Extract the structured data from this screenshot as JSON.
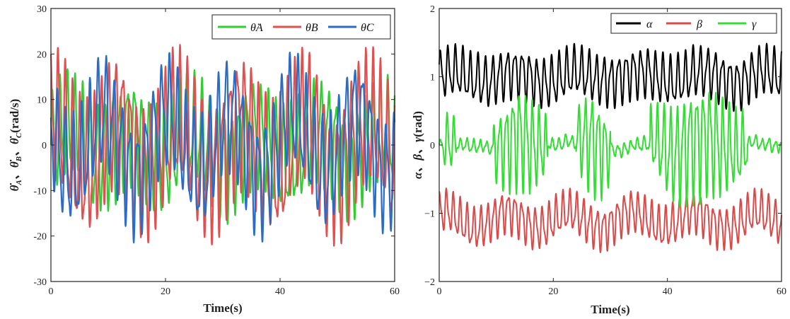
{
  "chart_data": [
    {
      "type": "line",
      "xlabel": "Time(s)",
      "ylabel_parts": [
        "θ̇",
        "A",
        "、",
        "θ̇",
        "B",
        "、",
        "θ̇",
        "C",
        "(rad/s)"
      ],
      "xlim": [
        0,
        60
      ],
      "ylim": [
        -30,
        30
      ],
      "x_ticks": [
        0,
        20,
        40,
        60
      ],
      "y_ticks": [
        -30,
        -20,
        -10,
        0,
        10,
        20,
        30
      ],
      "x_tick_labels": [
        "0",
        "20",
        "40",
        "60"
      ],
      "y_tick_labels": [
        "-30",
        "-20",
        "-10",
        "0",
        "10",
        "20",
        "30"
      ],
      "legend_position": "top-right",
      "series": [
        {
          "name": "θ̇A",
          "sub": "A",
          "color": "#33cc33",
          "base": 0,
          "amp": 13.5,
          "period": 1.3,
          "mod": 3.5,
          "phase": 0.0
        },
        {
          "name": "θ̇B",
          "sub": "B",
          "color": "#e05050",
          "base": 0,
          "amp": 17,
          "period": 1.25,
          "mod": 6.0,
          "phase": 1.4
        },
        {
          "name": "θ̇C",
          "sub": "C",
          "color": "#2b6cc4",
          "base": 0,
          "amp": 14,
          "period": 1.4,
          "mod": 7.0,
          "phase": 2.6
        }
      ]
    },
    {
      "type": "line",
      "xlabel": "Time(s)",
      "ylabel_parts": [
        "α",
        "、",
        "β",
        "、",
        "γ",
        "(rad)"
      ],
      "xlim": [
        0,
        60
      ],
      "ylim": [
        -2,
        2
      ],
      "x_ticks": [
        0,
        20,
        40,
        60
      ],
      "y_ticks": [
        -2,
        -1,
        0,
        1,
        2
      ],
      "x_tick_labels": [
        "0",
        "20",
        "40",
        "60"
      ],
      "y_tick_labels": [
        "−2",
        "−1",
        "0",
        "1",
        "2"
      ],
      "legend_position": "top-right",
      "series": [
        {
          "name": "α",
          "color": "#000000",
          "base": 1.0,
          "amp": 0.42,
          "period": 1.3,
          "mod": 0.08,
          "phase": 0.3
        },
        {
          "name": "β",
          "color": "#d94a4a",
          "base": -1.1,
          "amp": 0.35,
          "period": 1.2,
          "mod": 0.12,
          "phase": 1.1
        },
        {
          "name": "γ",
          "color": "#33dd33",
          "base": 0.0,
          "amp": 0.85,
          "period": 1.15,
          "mod": 0.1,
          "phase": 0.0,
          "envelope": true
        }
      ]
    }
  ]
}
